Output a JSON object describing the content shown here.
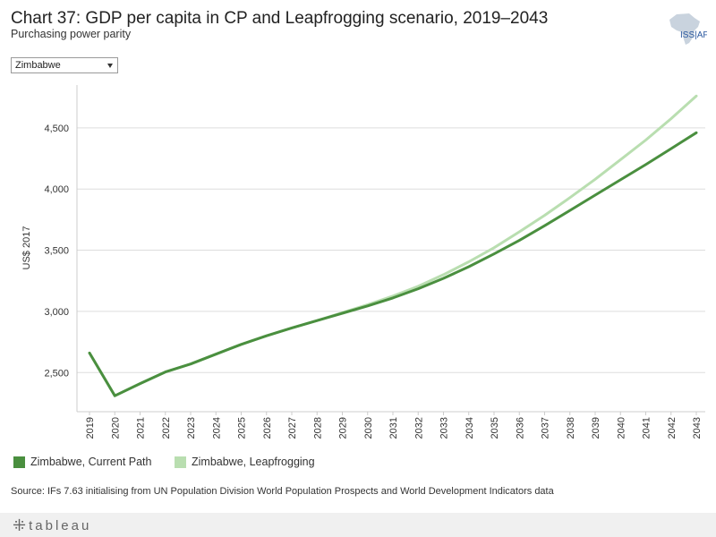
{
  "header": {
    "title": "Chart 37: GDP per capita in CP and Leapfrogging scenario, 2019–2043",
    "subtitle": "Purchasing power parity",
    "logo_text": "ISS|AF"
  },
  "filter": {
    "selected": "Zimbabwe"
  },
  "footer": {
    "source": "Source: IFs 7.63 initialising from UN Population Division World Population Prospects and World Development Indicators data",
    "brand": "tableau"
  },
  "colors": {
    "current_path": "#4a8f3f",
    "leapfrogging": "#b9deb0",
    "grid": "#dddddd"
  },
  "chart_data": {
    "type": "line",
    "title": "Chart 37: GDP per capita in CP and Leapfrogging scenario, 2019–2043",
    "subtitle": "Purchasing power parity",
    "xlabel": "",
    "ylabel": "US$ 2017",
    "ylim": [
      2180,
      4850
    ],
    "yticks": [
      2500,
      3000,
      3500,
      4000,
      4500
    ],
    "ytick_labels": [
      "2,500",
      "3,000",
      "3,500",
      "4,000",
      "4,500"
    ],
    "grid": true,
    "legend_position": "bottom-left",
    "x": [
      2019,
      2020,
      2021,
      2022,
      2023,
      2024,
      2025,
      2026,
      2027,
      2028,
      2029,
      2030,
      2031,
      2032,
      2033,
      2034,
      2035,
      2036,
      2037,
      2038,
      2039,
      2040,
      2041,
      2042,
      2043
    ],
    "x_labels": [
      "2019",
      "2020",
      "2021",
      "2022",
      "2023",
      "2024",
      "2025",
      "2026",
      "2027",
      "2028",
      "2029",
      "2030",
      "2031",
      "2032",
      "2033",
      "2034",
      "2035",
      "2036",
      "2037",
      "2038",
      "2039",
      "2040",
      "2041",
      "2042",
      "2043"
    ],
    "series": [
      {
        "name": "Zimbabwe, Current Path",
        "color": "#4a8f3f",
        "values": [
          2660,
          2310,
          2410,
          2505,
          2570,
          2650,
          2730,
          2800,
          2865,
          2925,
          2985,
          3045,
          3110,
          3185,
          3270,
          3365,
          3470,
          3580,
          3700,
          3825,
          3950,
          4075,
          4200,
          4330,
          4460
        ]
      },
      {
        "name": "Zimbabwe, Leapfrogging",
        "color": "#b9deb0",
        "values": [
          2660,
          2310,
          2410,
          2505,
          2570,
          2650,
          2730,
          2800,
          2865,
          2925,
          2990,
          3055,
          3125,
          3205,
          3300,
          3405,
          3520,
          3650,
          3785,
          3930,
          4080,
          4240,
          4400,
          4575,
          4760
        ]
      }
    ]
  }
}
